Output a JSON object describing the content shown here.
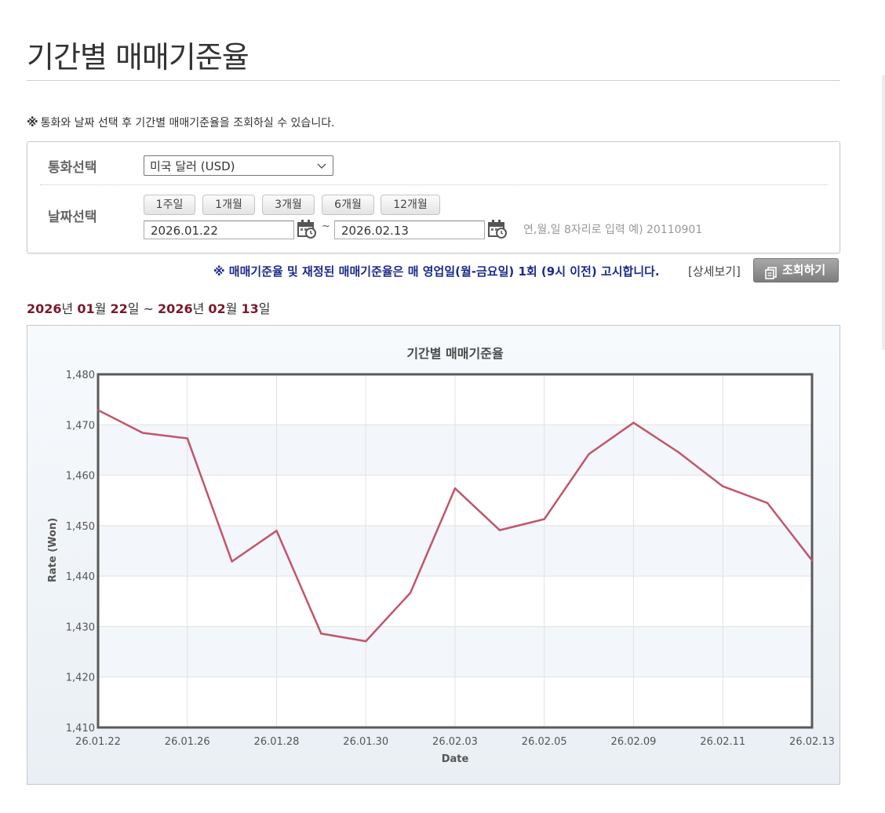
{
  "page": {
    "title": "기간별 매매기준율",
    "notice_mark": "※",
    "notice": "통화와 날짜 선택 후 기간별 매매기준율을 조회하실 수 있습니다."
  },
  "search": {
    "currency_label": "통화선택",
    "currency_value": "미국 달러 (USD)",
    "date_label": "날짜선택",
    "period_buttons": [
      "1주일",
      "1개월",
      "3개월",
      "6개월",
      "12개월"
    ],
    "start_date": "2026.01.22",
    "tilde": "~",
    "end_date": "2026.02.13",
    "hint": "연,월,일 8자리로 입력 예) 20110901"
  },
  "announcement": {
    "text": "※ 매매기준율 및 재정된 매매기준율은 매 영업일(월-금요일) 1회 (9시 이전) 고시합니다.",
    "detail_link": "[상세보기]",
    "query_button": "조회하기"
  },
  "range": {
    "start_year": "2026",
    "year_unit": "년",
    "start_month": "01",
    "month_unit": "월",
    "start_day": "22",
    "day_unit": "일",
    "sep": "~",
    "end_year": "2026",
    "end_month": "02",
    "end_day": "13"
  },
  "colors": {
    "line": "#c0566a",
    "range_number": "#7a1a2c",
    "announcement": "#1b2a8c"
  },
  "chart_data": {
    "type": "line",
    "title": "기간별 매매기준율",
    "xlabel": "Date",
    "ylabel": "Rate (Won)",
    "ylim": [
      1410,
      1480
    ],
    "yticks": [
      "1,410",
      "1,420",
      "1,430",
      "1,440",
      "1,450",
      "1,460",
      "1,470",
      "1,480"
    ],
    "xtick_labels": [
      "26.01.22",
      "26.01.26",
      "26.01.28",
      "26.01.30",
      "26.02.03",
      "26.02.05",
      "26.02.09",
      "26.02.11",
      "26.02.13"
    ],
    "xtick_positions": [
      0,
      2,
      4,
      6,
      8,
      10,
      12,
      14,
      16
    ],
    "grid": true,
    "series": [
      {
        "x": [
          "26.01.22",
          "26.01.23",
          "26.01.26",
          "26.01.27",
          "26.01.28",
          "26.01.29",
          "26.01.30",
          "26.02.02",
          "26.02.03",
          "26.02.04",
          "26.02.05",
          "26.02.06",
          "26.02.09",
          "26.02.10",
          "26.02.11",
          "26.02.12",
          "26.02.13"
        ],
        "values": [
          1472.9,
          1468.4,
          1467.3,
          1442.9,
          1449.0,
          1428.6,
          1427.1,
          1436.7,
          1457.4,
          1449.1,
          1451.3,
          1464.2,
          1470.4,
          1464.6,
          1457.8,
          1454.5,
          1443.1
        ]
      }
    ]
  }
}
